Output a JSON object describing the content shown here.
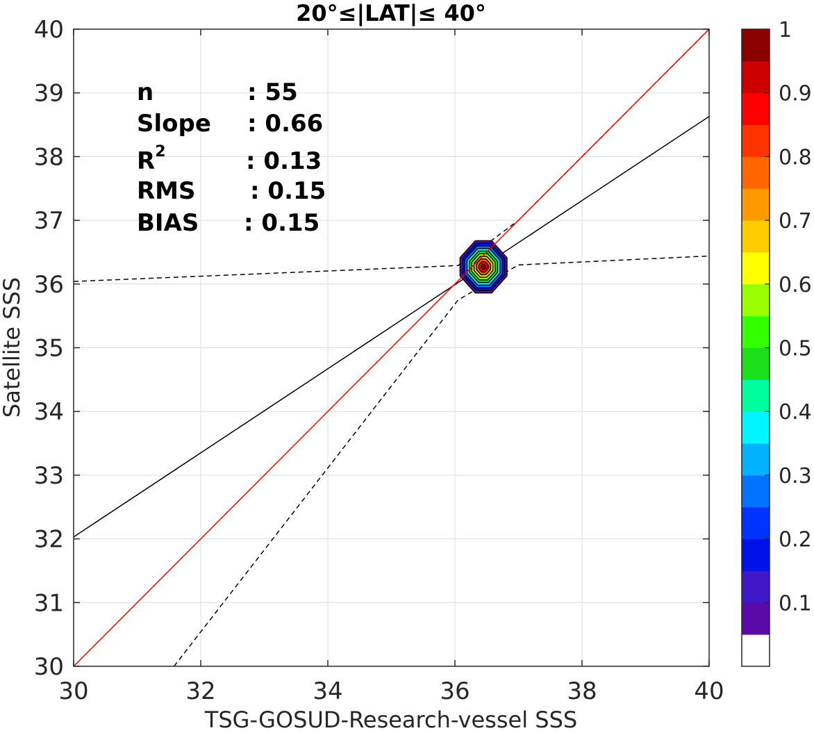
{
  "chart_data": {
    "type": "heatmap",
    "title": "20°≤|LAT|≤ 40°",
    "xlabel": "TSG-GOSUD-Research-vessel SSS",
    "ylabel": "Satellite SSS",
    "xlim": [
      30,
      40
    ],
    "ylim": [
      30,
      40
    ],
    "xticks": [
      "30",
      "32",
      "34",
      "36",
      "38",
      "40"
    ],
    "yticks": [
      "30",
      "31",
      "32",
      "33",
      "34",
      "35",
      "36",
      "37",
      "38",
      "39",
      "40"
    ],
    "grid": true,
    "stats": [
      {
        "label": "n",
        "value": ": 55"
      },
      {
        "label": "Slope",
        "value": ": 0.66"
      },
      {
        "label": "R",
        "sup": "2",
        "value": ": 0.13"
      },
      {
        "label": "RMS",
        "value": ": 0.15"
      },
      {
        "label": "BIAS",
        "value": ": 0.15"
      }
    ],
    "lines": {
      "identity": {
        "x": [
          30,
          40
        ],
        "y": [
          30,
          40
        ],
        "color": "#ff0000",
        "style": "solid"
      },
      "regression": {
        "x": [
          30,
          40
        ],
        "y": [
          32.03,
          38.63
        ],
        "color": "#000000",
        "style": "solid"
      },
      "upper_bound": {
        "x": [
          30,
          36.05,
          37.0,
          40
        ],
        "y": [
          36.04,
          36.29,
          37.0,
          40.0
        ],
        "color": "#000000",
        "style": "dashed"
      },
      "lower_bound": {
        "x": [
          31.58,
          36.05,
          37.0,
          40
        ],
        "y": [
          30.0,
          35.75,
          36.3,
          36.44
        ],
        "color": "#000000",
        "style": "dashed"
      }
    },
    "density": {
      "center": [
        36.45,
        36.27
      ],
      "levels": [
        0.05,
        0.15,
        0.25,
        0.35,
        0.45,
        0.55,
        0.65,
        0.75,
        0.85,
        0.95
      ],
      "halfwidth_x": 0.37,
      "halfwidth_y": 0.41
    },
    "colorbar": {
      "ticks": [
        "0.1",
        "0.2",
        "0.3",
        "0.4",
        "0.5",
        "0.6",
        "0.7",
        "0.8",
        "0.9",
        "1"
      ],
      "tick_values": [
        0.1,
        0.2,
        0.3,
        0.4,
        0.5,
        0.6,
        0.7,
        0.8,
        0.9,
        1.0
      ],
      "range": [
        0,
        1
      ],
      "colors": [
        "#ffffff",
        "#5a0aa8",
        "#3f19c8",
        "#0010e8",
        "#0033ff",
        "#0073ff",
        "#00b2ff",
        "#00f6ff",
        "#00ff9c",
        "#1ce01c",
        "#33ff00",
        "#99ff00",
        "#ffff00",
        "#ffcc00",
        "#ff9900",
        "#ff6600",
        "#ff3300",
        "#ff0000",
        "#cc0000",
        "#8b0000"
      ]
    }
  }
}
